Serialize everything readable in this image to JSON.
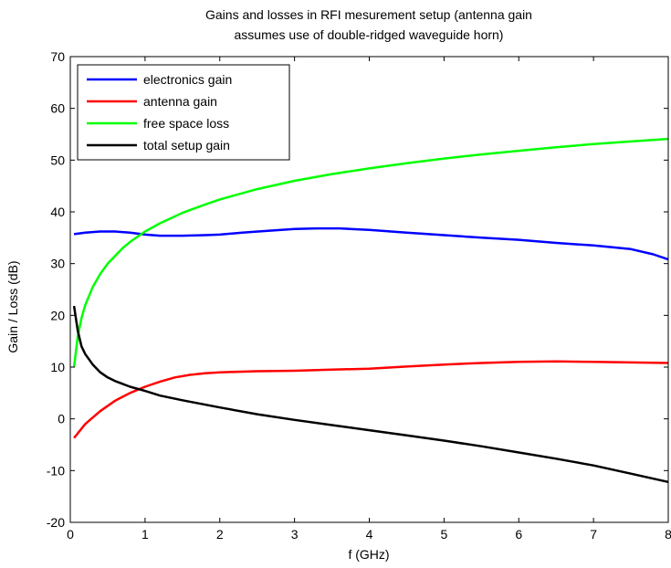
{
  "chart_data": {
    "type": "line",
    "title": [
      "Gains and losses in RFI mesurement setup (antenna gain",
      "assumes use of double-ridged waveguide horn)"
    ],
    "xlabel": "f (GHz)",
    "ylabel": "Gain / Loss (dB)",
    "xlim": [
      0,
      8
    ],
    "ylim": [
      -20,
      70
    ],
    "xticks": [
      0,
      1,
      2,
      3,
      4,
      5,
      6,
      7,
      8
    ],
    "yticks": [
      -20,
      -10,
      0,
      10,
      20,
      30,
      40,
      50,
      60,
      70
    ],
    "grid": false,
    "legend_position": "top-left",
    "series": [
      {
        "name": "electronics gain",
        "color": "#0000ff",
        "x": [
          0.05,
          0.2,
          0.4,
          0.6,
          0.8,
          1.0,
          1.2,
          1.5,
          1.8,
          2.0,
          2.3,
          2.6,
          3.0,
          3.3,
          3.6,
          4.0,
          4.5,
          5.0,
          5.5,
          6.0,
          6.5,
          7.0,
          7.5,
          7.8,
          8.0
        ],
        "y": [
          35.7,
          36.0,
          36.2,
          36.2,
          36.0,
          35.6,
          35.4,
          35.4,
          35.5,
          35.6,
          36.0,
          36.3,
          36.7,
          36.8,
          36.8,
          36.5,
          36.0,
          35.5,
          35.0,
          34.6,
          34.0,
          33.5,
          32.8,
          31.8,
          30.8
        ]
      },
      {
        "name": "antenna gain",
        "color": "#ff0000",
        "x": [
          0.05,
          0.2,
          0.4,
          0.6,
          0.8,
          1.0,
          1.2,
          1.4,
          1.6,
          1.8,
          2.0,
          2.5,
          3.0,
          3.5,
          4.0,
          4.5,
          5.0,
          5.5,
          6.0,
          6.5,
          7.0,
          7.5,
          8.0
        ],
        "y": [
          -3.7,
          -1.0,
          1.5,
          3.5,
          5.0,
          6.2,
          7.2,
          8.0,
          8.5,
          8.8,
          9.0,
          9.2,
          9.3,
          9.5,
          9.7,
          10.1,
          10.5,
          10.8,
          11.0,
          11.1,
          11.0,
          10.9,
          10.8
        ]
      },
      {
        "name": "free space loss",
        "color": "#00ff00",
        "x": [
          0.05,
          0.1,
          0.15,
          0.2,
          0.3,
          0.4,
          0.5,
          0.6,
          0.7,
          0.8,
          1.0,
          1.2,
          1.5,
          1.8,
          2.0,
          2.5,
          3.0,
          3.5,
          4.0,
          4.5,
          5.0,
          5.5,
          6.0,
          6.5,
          7.0,
          7.5,
          8.0
        ],
        "y": [
          10.0,
          16.0,
          19.5,
          22.0,
          25.5,
          28.0,
          30.0,
          31.5,
          33.0,
          34.2,
          36.2,
          37.8,
          39.8,
          41.4,
          42.4,
          44.4,
          46.0,
          47.3,
          48.4,
          49.4,
          50.3,
          51.1,
          51.8,
          52.5,
          53.1,
          53.6,
          54.1
        ]
      },
      {
        "name": "total setup gain",
        "color": "#000000",
        "x": [
          0.05,
          0.1,
          0.15,
          0.2,
          0.3,
          0.4,
          0.5,
          0.6,
          0.8,
          1.0,
          1.2,
          1.5,
          2.0,
          2.5,
          3.0,
          3.5,
          4.0,
          4.5,
          5.0,
          5.5,
          6.0,
          6.5,
          7.0,
          7.5,
          8.0
        ],
        "y": [
          21.8,
          17.0,
          14.0,
          12.5,
          10.5,
          9.0,
          8.0,
          7.3,
          6.2,
          5.4,
          4.5,
          3.6,
          2.2,
          0.9,
          -0.2,
          -1.2,
          -2.2,
          -3.2,
          -4.2,
          -5.3,
          -6.5,
          -7.7,
          -9.0,
          -10.6,
          -12.2
        ]
      }
    ]
  }
}
